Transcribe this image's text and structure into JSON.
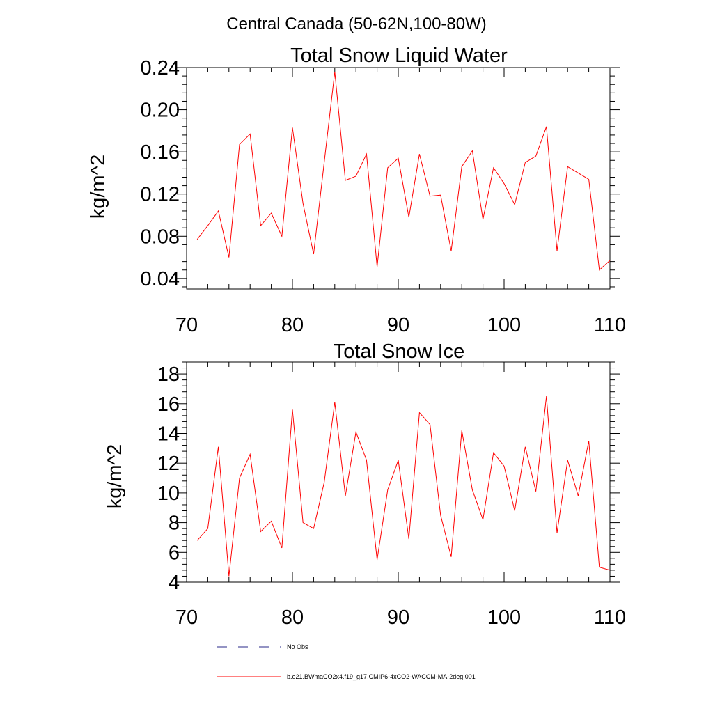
{
  "page_title": "Central Canada (50-62N,100-80W)",
  "colors": {
    "model": "#ff0000",
    "obs": "#2a2a8a",
    "axis": "#000000"
  },
  "legend": {
    "obs_label": "No Obs",
    "model_label": "b.e21.BWmaCO2x4.f19_g17.CMIP6-4xCO2-WACCM-MA-2deg.001"
  },
  "chart_data": [
    {
      "type": "line",
      "title": "Total Snow Liquid Water",
      "xlabel": "",
      "ylabel": "kg/m^2",
      "xlim": [
        70,
        110
      ],
      "ylim": [
        0.03,
        0.24
      ],
      "xticks": [
        70,
        80,
        90,
        100,
        110
      ],
      "yticks": [
        0.04,
        0.08,
        0.12,
        0.16,
        0.2,
        0.24
      ],
      "ytick_labels": [
        "0.04",
        "0.08",
        "0.12",
        "0.16",
        "0.20",
        "0.24"
      ],
      "grid": false,
      "series": [
        {
          "name": "b.e21.BWmaCO2x4.f19_g17.CMIP6-4xCO2-WACCM-MA-2deg.001",
          "x": [
            71,
            72,
            73,
            74,
            75,
            76,
            77,
            78,
            79,
            80,
            81,
            82,
            83,
            84,
            85,
            86,
            87,
            88,
            89,
            90,
            91,
            92,
            93,
            94,
            95,
            96,
            97,
            98,
            99,
            100,
            101,
            102,
            103,
            104,
            105,
            106,
            107,
            108,
            109,
            110
          ],
          "values": [
            0.077,
            0.09,
            0.104,
            0.06,
            0.167,
            0.177,
            0.09,
            0.102,
            0.08,
            0.183,
            0.111,
            0.063,
            0.15,
            0.236,
            0.133,
            0.137,
            0.158,
            0.051,
            0.145,
            0.154,
            0.098,
            0.158,
            0.118,
            0.119,
            0.066,
            0.146,
            0.161,
            0.096,
            0.145,
            0.13,
            0.11,
            0.15,
            0.156,
            0.184,
            0.066,
            0.146,
            0.14,
            0.134,
            0.048,
            0.057
          ]
        }
      ]
    },
    {
      "type": "line",
      "title": "Total Snow Ice",
      "xlabel": "",
      "ylabel": "kg/m^2",
      "xlim": [
        70,
        110
      ],
      "ylim": [
        4,
        18.8
      ],
      "xticks": [
        70,
        80,
        90,
        100,
        110
      ],
      "yticks": [
        4,
        6,
        8,
        10,
        12,
        14,
        16,
        18
      ],
      "ytick_labels": [
        "4",
        "6",
        "8",
        "10",
        "12",
        "14",
        "16",
        "18"
      ],
      "grid": false,
      "series": [
        {
          "name": "b.e21.BWmaCO2x4.f19_g17.CMIP6-4xCO2-WACCM-MA-2deg.001",
          "x": [
            71,
            72,
            73,
            74,
            75,
            76,
            77,
            78,
            79,
            80,
            81,
            82,
            83,
            84,
            85,
            86,
            87,
            88,
            89,
            90,
            91,
            92,
            93,
            94,
            95,
            96,
            97,
            98,
            99,
            100,
            101,
            102,
            103,
            104,
            105,
            106,
            107,
            108,
            109,
            110
          ],
          "values": [
            6.8,
            7.6,
            13.1,
            4.4,
            11.0,
            12.6,
            7.4,
            8.1,
            6.3,
            15.6,
            8.0,
            7.6,
            10.7,
            16.1,
            9.8,
            14.1,
            12.2,
            5.5,
            10.2,
            12.2,
            6.9,
            15.4,
            14.6,
            8.5,
            5.7,
            14.2,
            10.2,
            8.2,
            12.7,
            11.8,
            8.8,
            13.1,
            10.1,
            16.5,
            7.3,
            12.2,
            9.8,
            13.5,
            5.0,
            4.8
          ]
        }
      ]
    }
  ]
}
